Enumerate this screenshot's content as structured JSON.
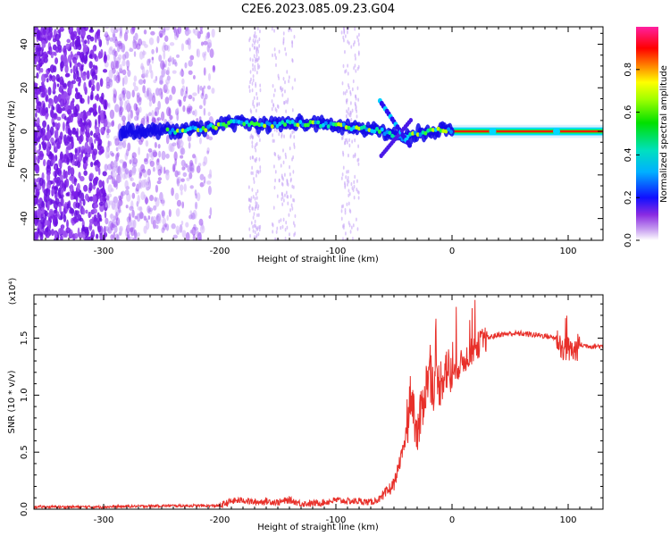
{
  "figure_title": "C2E6.2023.085.09.23.G04",
  "chart_data": [
    {
      "type": "heatmap",
      "xlabel": "Height of straight line (km)",
      "ylabel": "Frequency (Hz)",
      "xlim": [
        -360,
        130
      ],
      "ylim": [
        -50,
        48
      ],
      "xticks": [
        -300,
        -200,
        -100,
        0,
        100
      ],
      "xtick_labels": [
        "-300",
        "-200",
        "-100",
        "0",
        "100"
      ],
      "yticks": [
        -40,
        -20,
        0,
        20,
        40
      ],
      "ytick_labels": [
        "-40",
        "-20",
        "0",
        "20",
        "40"
      ],
      "colorbar": {
        "label": "Normalized spectral amplitude",
        "range": [
          0,
          1
        ],
        "ticks": [
          0.0,
          0.2,
          0.4,
          0.6,
          0.8
        ],
        "tick_labels": [
          "0.0",
          "0.2",
          "0.4",
          "0.6",
          "0.8"
        ]
      },
      "features": {
        "noise_region_x": [
          -360,
          -205
        ],
        "ridge": {
          "x": [
            -285,
            -250,
            -215,
            -190,
            -160,
            -130,
            -110,
            -90,
            -75,
            -60,
            -50,
            -40,
            -30,
            -20,
            -10,
            0,
            130
          ],
          "y": [
            0,
            0,
            1,
            4,
            3,
            4,
            3,
            2,
            1,
            0,
            -2,
            -3,
            -1,
            0,
            1,
            0,
            0
          ]
        },
        "strong_band_x": [
          0,
          130
        ]
      }
    },
    {
      "type": "line",
      "xlabel": "Height of straight line (km)",
      "ylabel": "SNR (10 * v/v)",
      "y_multiplier": "(x10⁴)",
      "xlim": [
        -360,
        130
      ],
      "ylim": [
        0,
        1.88
      ],
      "xticks": [
        -300,
        -200,
        -100,
        0,
        100
      ],
      "xtick_labels": [
        "-300",
        "-200",
        "-100",
        "0",
        "100"
      ],
      "yticks": [
        0.0,
        0.5,
        1.0,
        1.5
      ],
      "ytick_labels": [
        "0.0",
        "0.5",
        "1.0",
        "1.5"
      ],
      "color": "#e8302a",
      "series": [
        {
          "x": [
            -360,
            -300,
            -250,
            -200,
            -190,
            -180,
            -170,
            -160,
            -150,
            -140,
            -130,
            -120,
            -110,
            -100,
            -90,
            -80,
            -70,
            -60,
            -50,
            -40,
            -35,
            -30,
            -25,
            -20,
            -15,
            -10,
            -5,
            0,
            5,
            10,
            20,
            30,
            40,
            50,
            60,
            70,
            80,
            90,
            95,
            100,
            105,
            110,
            120,
            130
          ],
          "y": [
            0.02,
            0.02,
            0.03,
            0.03,
            0.07,
            0.08,
            0.06,
            0.07,
            0.06,
            0.08,
            0.05,
            0.05,
            0.06,
            0.08,
            0.07,
            0.07,
            0.06,
            0.1,
            0.22,
            0.6,
            1.05,
            0.62,
            0.95,
            1.2,
            1.05,
            1.12,
            1.25,
            1.15,
            1.25,
            1.3,
            1.42,
            1.5,
            1.53,
            1.54,
            1.54,
            1.53,
            1.52,
            1.5,
            1.42,
            1.4,
            1.38,
            1.44,
            1.43,
            1.43
          ]
        }
      ]
    }
  ]
}
